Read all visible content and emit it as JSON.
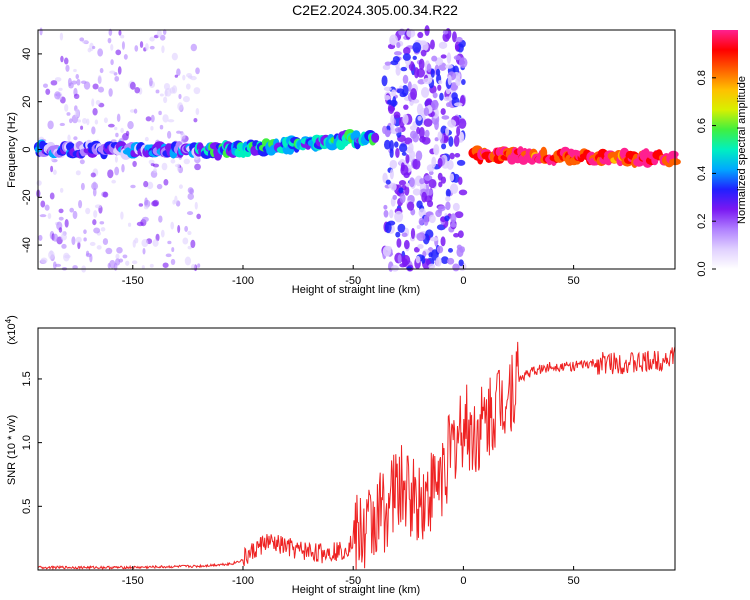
{
  "title": "C2E2.2024.305.00.34.R22",
  "colors": {
    "snr_line": "#ee2222",
    "colormap": [
      "#ffffff",
      "#e0d0ff",
      "#b080ff",
      "#7a18f2",
      "#2020ff",
      "#00a8ff",
      "#00f0c0",
      "#40f040",
      "#d8f000",
      "#ffc000",
      "#ff6000",
      "#ff0000",
      "#ff2090"
    ]
  },
  "chart_data": [
    {
      "type": "heatmap",
      "xlabel": "Height of straight line (km)",
      "ylabel": "Frequency (Hz)",
      "xlim": [
        -193,
        96
      ],
      "ylim": [
        -50,
        50
      ],
      "xticks": [
        -150,
        -100,
        -50,
        0,
        50
      ],
      "xtick_labels": [
        "-150",
        "-100",
        "-50",
        "0",
        "50"
      ],
      "yticks": [
        -40,
        -20,
        0,
        20,
        40
      ],
      "ytick_labels": [
        "-40",
        "-20",
        "0",
        "20",
        "40"
      ],
      "colorbar": {
        "label": "Normalized spectral amplitude",
        "range": [
          0,
          1
        ],
        "ticks": [
          0.0,
          0.2,
          0.4,
          0.6,
          0.8
        ],
        "tick_labels": [
          "0.0",
          "0.2",
          "0.4",
          "0.6",
          "0.8"
        ]
      },
      "features": [
        {
          "description": "noisy ridge near 0 Hz",
          "x_range": [
            -193,
            -120
          ],
          "freq_hz": 0,
          "amplitude": 0.25
        },
        {
          "description": "rising ridge",
          "x_range": [
            -120,
            -40
          ],
          "freq_hz_start": -1,
          "freq_hz_end": 5,
          "amplitude": 0.4
        },
        {
          "description": "broadband noise",
          "x_range": [
            -36,
            0
          ],
          "freq_hz": [
            -50,
            50
          ],
          "amplitude": 0.2
        },
        {
          "description": "strong narrow line",
          "x_range": [
            5,
            96
          ],
          "freq_hz_start": -2,
          "freq_hz_end": -4,
          "amplitude": 0.95
        }
      ]
    },
    {
      "type": "line",
      "xlabel": "Height of straight line (km)",
      "ylabel": "SNR (10 * v/v)",
      "scale_note": "(x10",
      "scale_exponent": "4",
      "xlim": [
        -193,
        96
      ],
      "ylim": [
        0,
        1.9
      ],
      "xticks": [
        -150,
        -100,
        -50,
        0,
        50
      ],
      "xtick_labels": [
        "-150",
        "-100",
        "-50",
        "0",
        "50"
      ],
      "yticks": [
        0.5,
        1.0,
        1.5
      ],
      "ytick_labels": [
        "0.5",
        "1.0",
        "1.5"
      ],
      "series": [
        {
          "x": [
            -193,
            -150,
            -120,
            -105,
            -100,
            -95,
            -90,
            -85,
            -80,
            -75,
            -70,
            -65,
            -60,
            -55,
            -50,
            -45,
            -40,
            -35,
            -30,
            -25,
            -20,
            -15,
            -10,
            -5,
            0,
            5,
            10,
            15,
            20,
            25,
            30,
            40,
            50,
            60,
            70,
            80,
            90,
            96
          ],
          "values": [
            0.02,
            0.02,
            0.03,
            0.05,
            0.08,
            0.15,
            0.22,
            0.2,
            0.18,
            0.15,
            0.15,
            0.13,
            0.15,
            0.15,
            0.22,
            0.3,
            0.4,
            0.5,
            0.65,
            0.6,
            0.55,
            0.6,
            0.75,
            0.95,
            1.15,
            1.05,
            1.15,
            1.3,
            1.4,
            1.5,
            1.55,
            1.6,
            1.6,
            1.62,
            1.63,
            1.62,
            1.65,
            1.68
          ]
        }
      ]
    }
  ]
}
